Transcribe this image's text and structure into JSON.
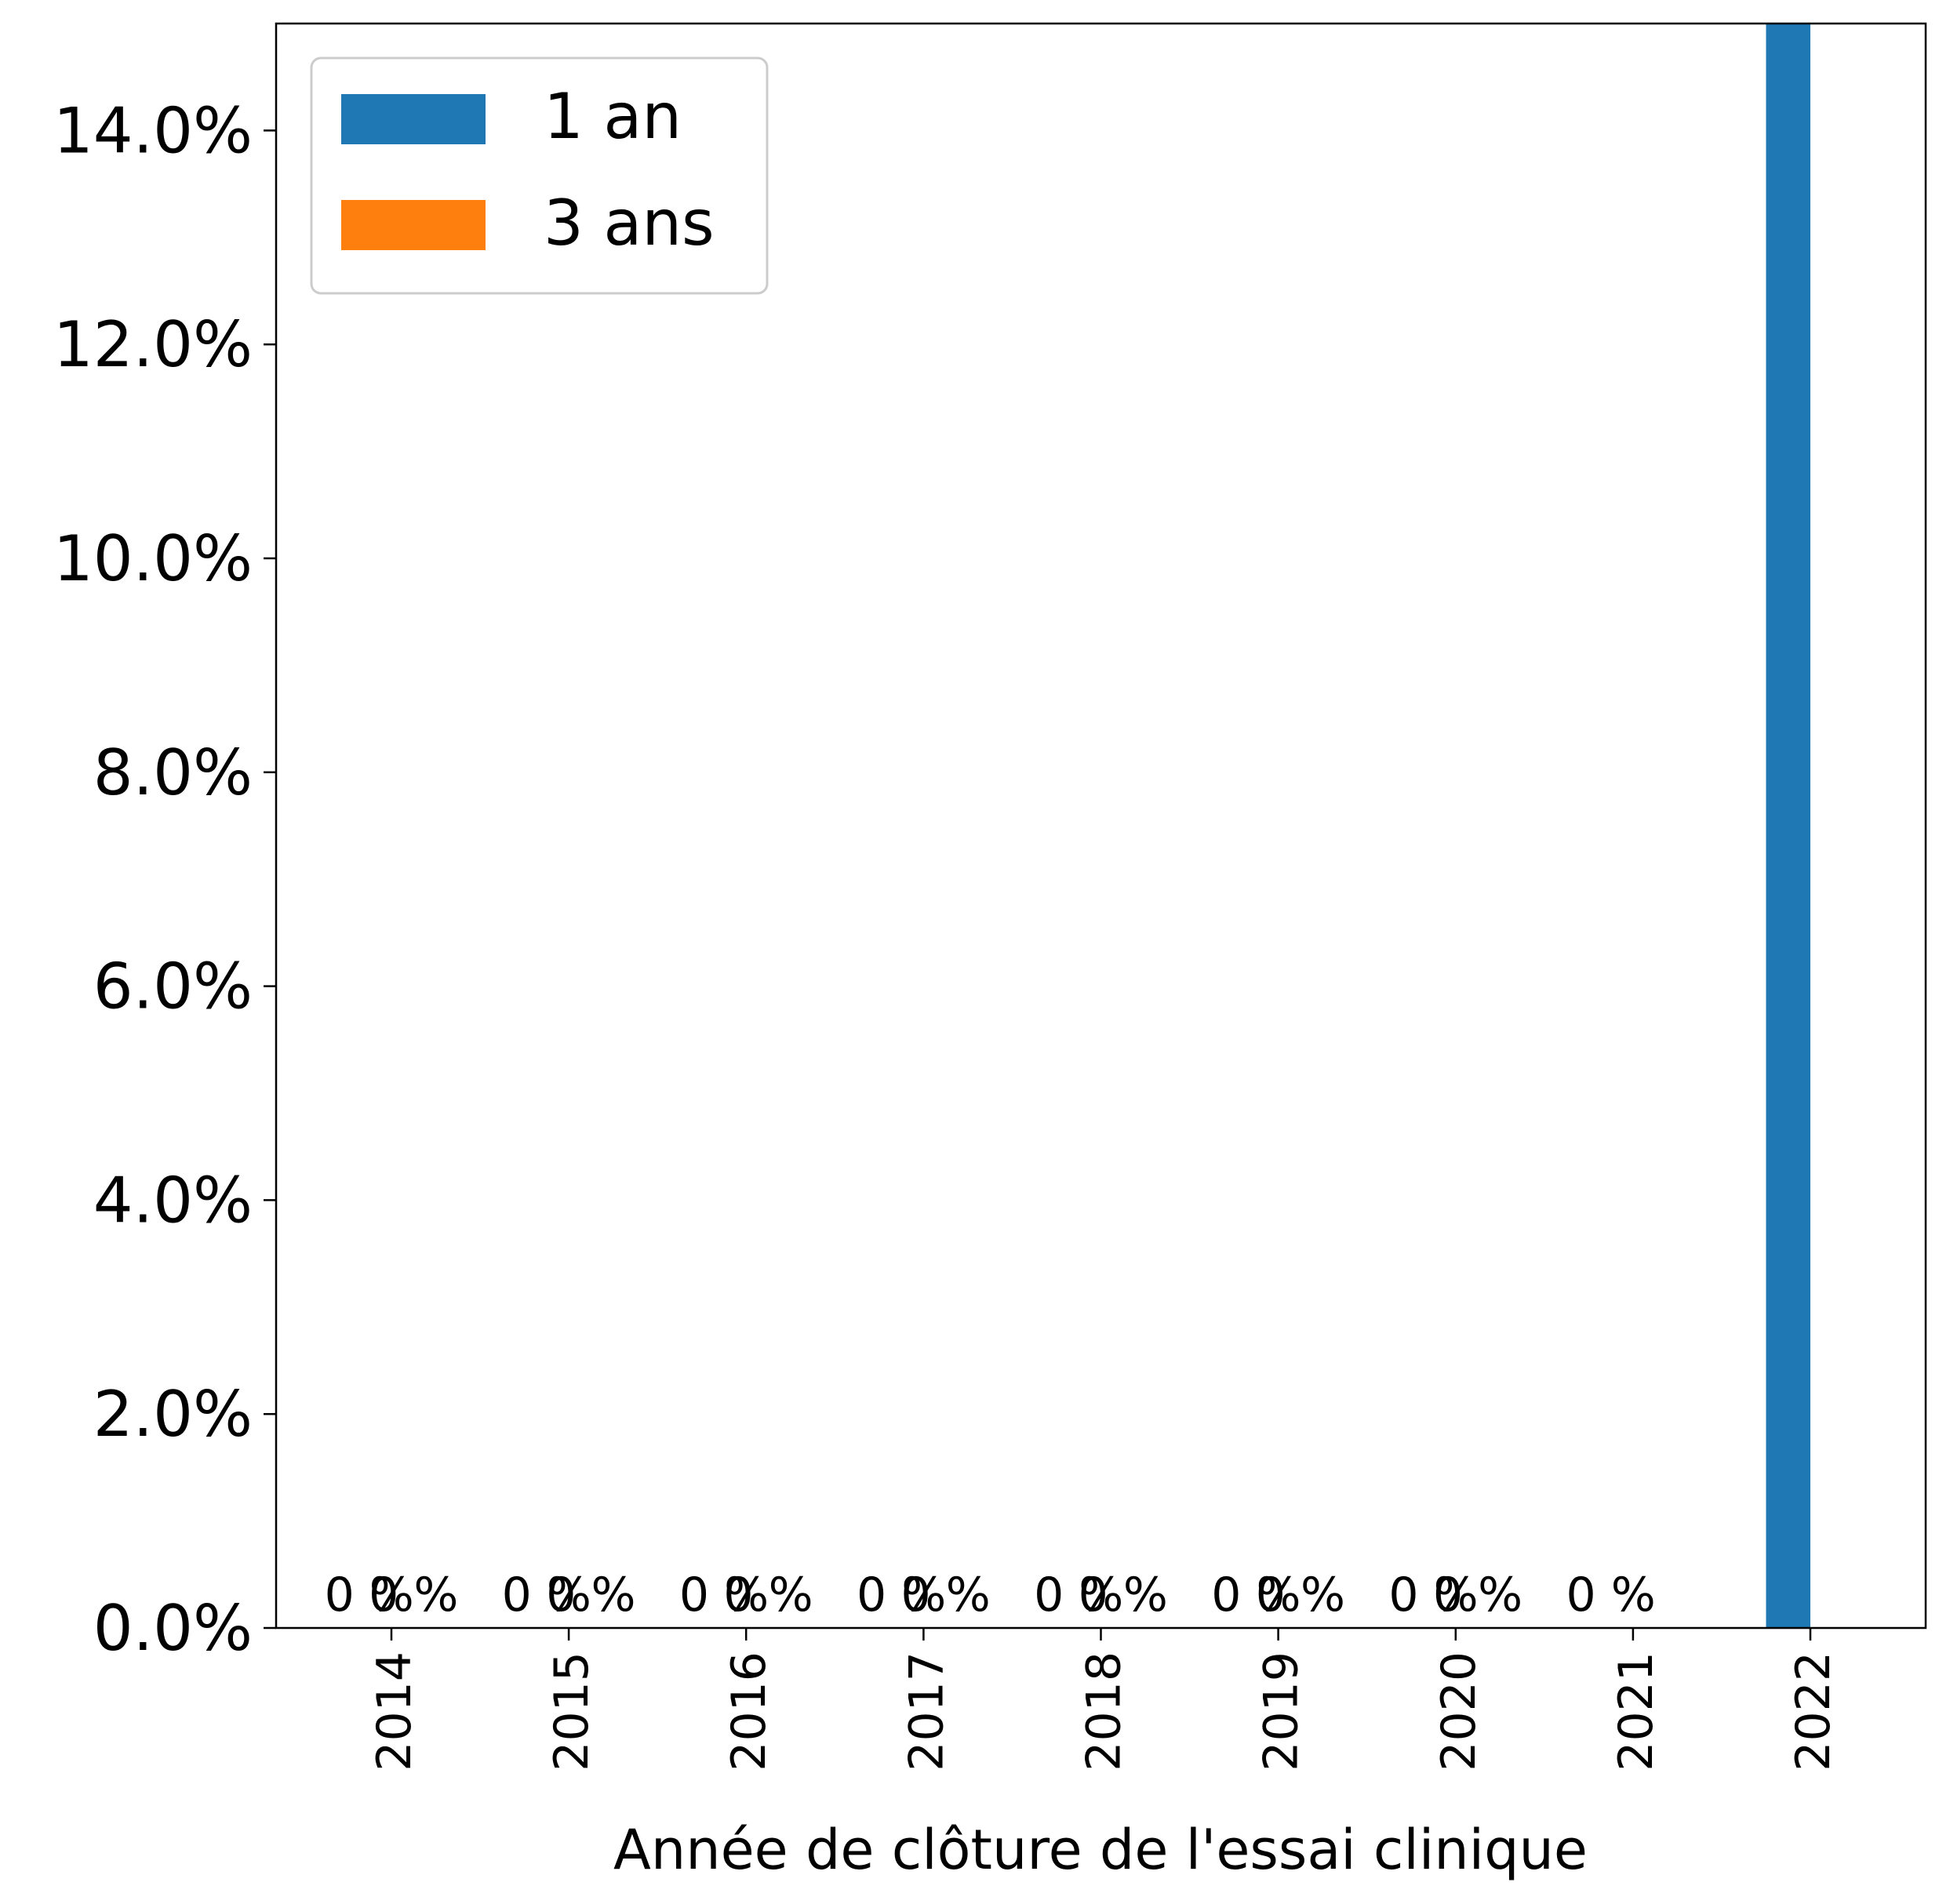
{
  "chart_data": {
    "type": "bar",
    "title": "",
    "xlabel": "Année de clôture de l'essai clinique",
    "ylabel": "",
    "categories": [
      "2014",
      "2015",
      "2016",
      "2017",
      "2018",
      "2019",
      "2020",
      "2021",
      "2022"
    ],
    "series": [
      {
        "name": "1 an",
        "color": "#1f77b4",
        "values": [
          0,
          0,
          0,
          0,
          0,
          0,
          0,
          0,
          15.0
        ],
        "value_labels": [
          "0 %",
          "0 %",
          "0 %",
          "0 %",
          "0 %",
          "0 %",
          "0 %",
          "0 %",
          ""
        ]
      },
      {
        "name": "3 ans",
        "color": "#ff7f0e",
        "values": [
          0,
          0,
          0,
          0,
          0,
          0,
          0,
          null,
          null
        ],
        "value_labels": [
          "0 %",
          "0 %",
          "0 %",
          "0 %",
          "0 %",
          "0 %",
          "0 %",
          "",
          ""
        ]
      }
    ],
    "ylim": [
      0,
      15.0
    ],
    "yticks": [
      0,
      2,
      4,
      6,
      8,
      10,
      12,
      14
    ],
    "ytick_labels": [
      "0.0%",
      "2.0%",
      "4.0%",
      "6.0%",
      "8.0%",
      "10.0%",
      "12.0%",
      "14.0%"
    ],
    "grid": false,
    "legend_position": "top-left"
  }
}
